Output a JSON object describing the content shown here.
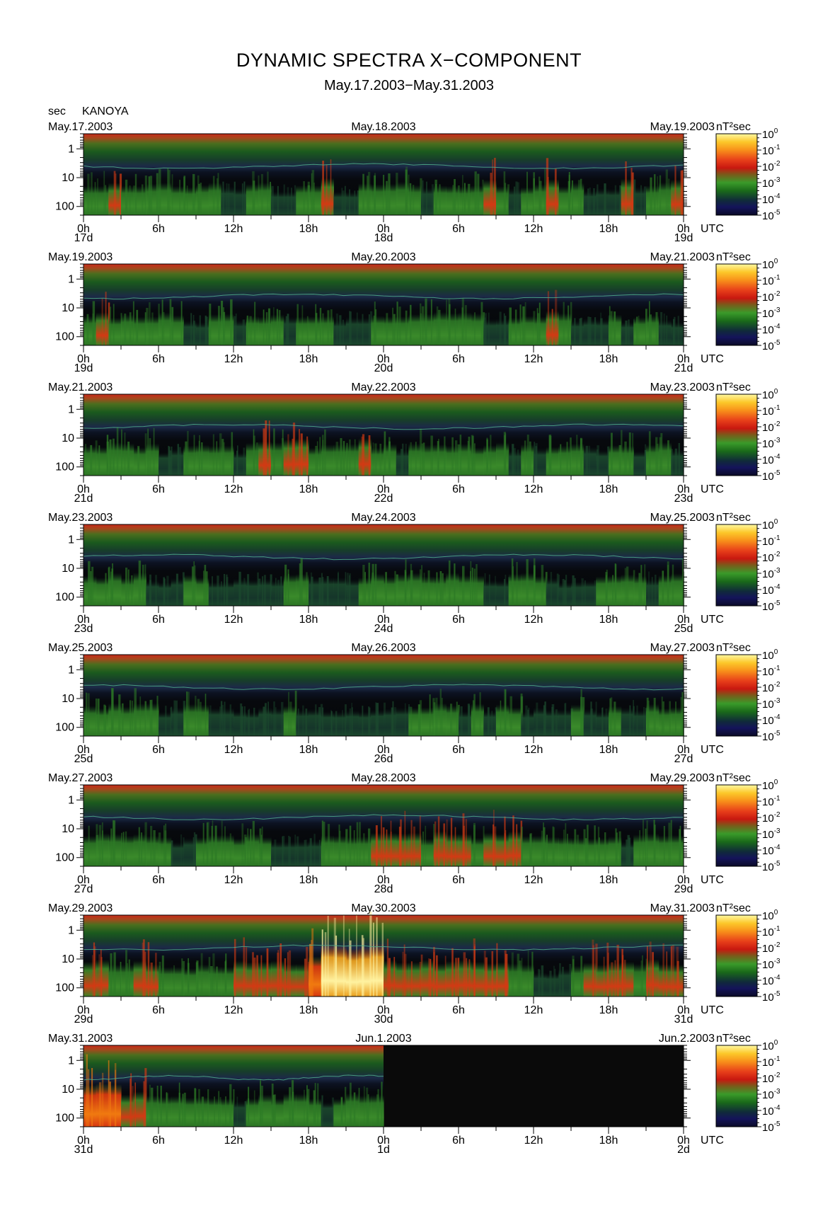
{
  "header": {
    "title": "DYNAMIC SPECTRA X−COMPONENT",
    "subtitle": "May.17.2003−May.31.2003",
    "unit_label": "sec",
    "station": "KANOYA",
    "cbar_unit": "nT²sec",
    "utc_label": "UTC"
  },
  "chart_data": {
    "type": "heatmap",
    "title": "DYNAMIC SPECTRA X−COMPONENT",
    "subtitle": "May.17.2003−May.31.2003",
    "ylabel": "sec",
    "y_scale": "log",
    "ylim": [
      200,
      0.3
    ],
    "y_ticks": [
      "1",
      "10",
      "100"
    ],
    "x_ticks": [
      "0h",
      "6h",
      "12h",
      "18h",
      "0h",
      "6h",
      "12h",
      "18h",
      "0h"
    ],
    "colorbar": {
      "unit": "nT²sec",
      "scale": "log",
      "range": [
        1e-05,
        1
      ],
      "tick_bases": [
        "10",
        "10",
        "10",
        "10",
        "10",
        "10"
      ],
      "tick_exps": [
        "0",
        "-1",
        "-2",
        "-3",
        "-4",
        "-5"
      ]
    },
    "panels": [
      {
        "date_left": "May.17.2003",
        "date_mid": "May.18.2003",
        "date_right": "May.19.2003",
        "day_left": "17d",
        "day_mid": "18d",
        "day_right": "19d",
        "data_fraction": 1.0,
        "activity": [
          2,
          2,
          3,
          2,
          2,
          2,
          2,
          2,
          2,
          2,
          2,
          1,
          1,
          2,
          2,
          1,
          1,
          2,
          2,
          3,
          1,
          1,
          2,
          2,
          2,
          2,
          2,
          1,
          2,
          2,
          2,
          2,
          3,
          2,
          1,
          2,
          2,
          3,
          2,
          2,
          1,
          1,
          1,
          3,
          1,
          2,
          2,
          3
        ]
      },
      {
        "date_left": "May.19.2003",
        "date_mid": "May.20.2003",
        "date_right": "May.21.2003",
        "day_left": "19d",
        "day_mid": "20d",
        "day_right": "21d",
        "data_fraction": 1.0,
        "activity": [
          2,
          3,
          2,
          2,
          2,
          2,
          2,
          2,
          1,
          1,
          2,
          2,
          1,
          2,
          2,
          2,
          1,
          2,
          2,
          2,
          1,
          1,
          1,
          2,
          2,
          2,
          2,
          2,
          2,
          2,
          2,
          2,
          1,
          1,
          2,
          2,
          2,
          3,
          2,
          1,
          1,
          1,
          2,
          1,
          2,
          2,
          1,
          1
        ]
      },
      {
        "date_left": "May.21.2003",
        "date_mid": "May.22.2003",
        "date_right": "May.23.2003",
        "day_left": "21d",
        "day_mid": "22d",
        "day_right": "23d",
        "data_fraction": 1.0,
        "activity": [
          2,
          2,
          2,
          2,
          2,
          2,
          1,
          1,
          2,
          2,
          2,
          2,
          1,
          2,
          3,
          2,
          3,
          3,
          2,
          2,
          2,
          2,
          3,
          2,
          2,
          1,
          2,
          2,
          2,
          2,
          2,
          2,
          2,
          2,
          1,
          2,
          1,
          2,
          2,
          2,
          1,
          1,
          2,
          2,
          1,
          2,
          2,
          1
        ]
      },
      {
        "date_left": "May.23.2003",
        "date_mid": "May.24.2003",
        "date_right": "May.25.2003",
        "day_left": "23d",
        "day_mid": "24d",
        "day_right": "25d",
        "data_fraction": 1.0,
        "activity": [
          2,
          2,
          2,
          2,
          2,
          1,
          1,
          1,
          2,
          2,
          1,
          1,
          1,
          1,
          1,
          1,
          2,
          2,
          1,
          1,
          1,
          1,
          2,
          2,
          2,
          2,
          2,
          2,
          2,
          2,
          2,
          2,
          1,
          1,
          2,
          2,
          2,
          1,
          1,
          1,
          1,
          2,
          2,
          2,
          2,
          1,
          2,
          2
        ]
      },
      {
        "date_left": "May.25.2003",
        "date_mid": "May.26.2003",
        "date_right": "May.27.2003",
        "day_left": "25d",
        "day_mid": "26d",
        "day_right": "27d",
        "data_fraction": 1.0,
        "activity": [
          2,
          2,
          2,
          2,
          2,
          2,
          1,
          1,
          2,
          2,
          1,
          1,
          1,
          1,
          1,
          1,
          2,
          1,
          1,
          1,
          1,
          1,
          1,
          1,
          1,
          1,
          2,
          2,
          2,
          2,
          1,
          2,
          1,
          2,
          2,
          1,
          1,
          1,
          1,
          2,
          1,
          1,
          2,
          1,
          1,
          2,
          2,
          2
        ]
      },
      {
        "date_left": "May.27.2003",
        "date_mid": "May.28.2003",
        "date_right": "May.29.2003",
        "day_left": "27d",
        "day_mid": "28d",
        "day_right": "29d",
        "data_fraction": 1.0,
        "activity": [
          2,
          2,
          2,
          2,
          2,
          2,
          2,
          1,
          1,
          2,
          2,
          2,
          2,
          2,
          2,
          1,
          1,
          1,
          1,
          2,
          2,
          2,
          2,
          3,
          3,
          3,
          3,
          2,
          3,
          3,
          3,
          2,
          3,
          3,
          3,
          2,
          2,
          2,
          2,
          2,
          2,
          2,
          2,
          1,
          2,
          2,
          2,
          2
        ]
      },
      {
        "date_left": "May.29.2003",
        "date_mid": "May.30.2003",
        "date_right": "May.31.2003",
        "day_left": "29d",
        "day_mid": "30d",
        "day_right": "31d",
        "data_fraction": 1.0,
        "activity": [
          3,
          3,
          2,
          2,
          3,
          3,
          2,
          2,
          2,
          2,
          2,
          2,
          3,
          3,
          3,
          3,
          3,
          3,
          4,
          5,
          5,
          5,
          5,
          5,
          3,
          3,
          3,
          3,
          3,
          3,
          3,
          3,
          3,
          3,
          2,
          2,
          1,
          1,
          1,
          2,
          3,
          3,
          3,
          3,
          2,
          3,
          3,
          3
        ]
      },
      {
        "date_left": "May.31.2003",
        "date_mid": "Jun.1.2003",
        "date_right": "Jun.2.2003",
        "day_left": "31d",
        "day_mid": "1d",
        "day_right": "2d",
        "data_fraction": 0.5,
        "activity": [
          4,
          4,
          4,
          3,
          3,
          2,
          2,
          2,
          2,
          2,
          2,
          2,
          1,
          2,
          2,
          2,
          2,
          2,
          2,
          1,
          2,
          2,
          2,
          2
        ]
      }
    ]
  }
}
